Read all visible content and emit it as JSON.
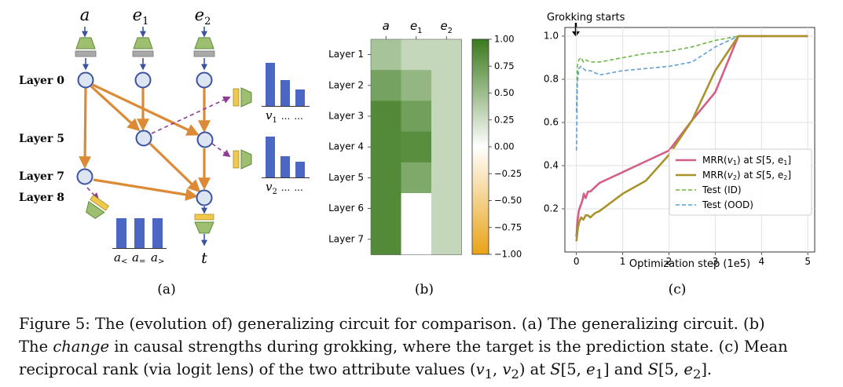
{
  "panel_a": {
    "inputs": [
      "a",
      "e",
      "e"
    ],
    "input_subs": [
      "",
      "1",
      "2"
    ],
    "layers": [
      "Layer 0",
      "Layer 5",
      "Layer 7",
      "Layer 8"
    ],
    "v1_label": "v",
    "v1_sub": "1",
    "v2_label": "v",
    "v2_sub": "2",
    "dots": "...",
    "a_labels": [
      "a",
      "a",
      "a"
    ],
    "a_subs": [
      "<",
      "=",
      ">"
    ],
    "output": "t",
    "tag": "(a)",
    "colors": {
      "node_fill": "#dde4f2",
      "node_stroke": "#3b53a0",
      "edge": "#dc8a35",
      "dashed": "#8e3b96",
      "bar": "#4a67c4",
      "encoder": "#9dbf6f",
      "gray": "#a9a9a9",
      "yellow": "#f0c84b"
    }
  },
  "panel_b": {
    "tag": "(b)",
    "chart_data": {
      "type": "heatmap",
      "columns": [
        "a",
        "e1",
        "e2"
      ],
      "column_labels": [
        "a",
        "e",
        "e"
      ],
      "column_subs": [
        "",
        "1",
        "2"
      ],
      "rows": [
        "Layer 1",
        "Layer 2",
        "Layer 3",
        "Layer 4",
        "Layer 5",
        "Layer 6",
        "Layer 7"
      ],
      "values": [
        [
          0.45,
          0.3,
          0.3
        ],
        [
          0.7,
          0.55,
          0.3
        ],
        [
          0.88,
          0.72,
          0.3
        ],
        [
          0.88,
          0.85,
          0.3
        ],
        [
          0.88,
          0.65,
          0.3
        ],
        [
          0.88,
          0.0,
          0.3
        ],
        [
          0.88,
          0.0,
          0.3
        ]
      ],
      "colorbar_ticks": [
        "1.00",
        "0.75",
        "0.50",
        "0.25",
        "0.00",
        "−0.25",
        "−0.50",
        "−0.75",
        "−1.00"
      ],
      "vmin": -1.0,
      "vmax": 1.0,
      "colormap": {
        "negative": "#e8a316",
        "zero": "#ffffff",
        "positive": "#3a7a1c"
      }
    }
  },
  "panel_c": {
    "tag": "(c)",
    "annotation": "Grokking starts",
    "chart_data": {
      "type": "line",
      "xlabel": "Optimization step (1e5)",
      "ylabel": "",
      "xlim": [
        -0.25,
        5.15
      ],
      "ylim": [
        0.0,
        1.04
      ],
      "xticks": [
        "0",
        "1",
        "2",
        "3",
        "4",
        "5"
      ],
      "yticks": [
        "0.2",
        "0.4",
        "0.6",
        "0.8",
        "1.0"
      ],
      "grid": true,
      "legend_position": "lower-right",
      "series": [
        {
          "name": "MRR(v1) at S[5, e1]",
          "legend_pre": "MRR(",
          "legend_var": "v",
          "legend_sub": "1",
          "legend_post": ") at ",
          "legend_S": "S",
          "legend_bracket": "[5, e",
          "legend_bsub": "1",
          "legend_end": "]",
          "color": "#d45f84",
          "style": "solid",
          "x": [
            0.0,
            0.02,
            0.05,
            0.08,
            0.1,
            0.13,
            0.16,
            0.2,
            0.25,
            0.3,
            0.35,
            0.4,
            0.5,
            1.0,
            1.5,
            2.0,
            2.5,
            3.0,
            3.5,
            5.0
          ],
          "y": [
            0.07,
            0.14,
            0.19,
            0.21,
            0.22,
            0.24,
            0.27,
            0.25,
            0.28,
            0.28,
            0.29,
            0.3,
            0.32,
            0.37,
            0.42,
            0.47,
            0.61,
            0.74,
            1.0,
            1.0
          ]
        },
        {
          "name": "MRR(v2) at S[5, e2]",
          "legend_pre": "MRR(",
          "legend_var": "v",
          "legend_sub": "2",
          "legend_post": ") at ",
          "legend_S": "S",
          "legend_bracket": "[5, e",
          "legend_bsub": "2",
          "legend_end": "]",
          "color": "#a8942b",
          "style": "solid",
          "x": [
            0.0,
            0.03,
            0.06,
            0.1,
            0.15,
            0.2,
            0.25,
            0.3,
            0.35,
            0.4,
            0.5,
            1.0,
            1.5,
            2.0,
            2.5,
            3.0,
            3.5,
            5.0
          ],
          "y": [
            0.05,
            0.11,
            0.14,
            0.16,
            0.15,
            0.17,
            0.17,
            0.16,
            0.17,
            0.18,
            0.19,
            0.27,
            0.33,
            0.45,
            0.61,
            0.84,
            1.0,
            1.0
          ]
        },
        {
          "name": "Test (ID)",
          "legend_pre": "Test (ID)",
          "color": "#6fb547",
          "style": "dashed",
          "x": [
            0.0,
            0.02,
            0.05,
            0.1,
            0.15,
            0.2,
            0.3,
            0.5,
            1.0,
            1.5,
            2.0,
            2.5,
            3.0,
            3.5,
            4.0,
            5.0
          ],
          "y": [
            0.65,
            0.86,
            0.89,
            0.9,
            0.88,
            0.89,
            0.88,
            0.88,
            0.9,
            0.92,
            0.93,
            0.95,
            0.98,
            1.0,
            1.0,
            1.0
          ]
        },
        {
          "name": "Test (OOD)",
          "legend_pre": "Test (OOD)",
          "color": "#5e9fdc",
          "style": "dashed",
          "x": [
            0.0,
            0.02,
            0.05,
            0.1,
            0.15,
            0.2,
            0.3,
            0.5,
            1.0,
            1.5,
            2.0,
            2.5,
            3.0,
            3.5,
            4.0,
            5.0
          ],
          "y": [
            0.47,
            0.78,
            0.85,
            0.86,
            0.85,
            0.84,
            0.84,
            0.82,
            0.84,
            0.85,
            0.86,
            0.88,
            0.95,
            1.0,
            1.0,
            1.0
          ]
        }
      ]
    }
  },
  "caption": {
    "line1": "Figure 5: The (evolution of) generalizing circuit for comparison. (a) The generalizing circuit. (b)",
    "line2_pre": "The ",
    "line2_em": "change",
    "line2_post": " in causal strengths during grokking, where the target is the prediction state. (c) Mean",
    "line3_pre": "reciprocal rank (via logit lens) of the two attribute values (",
    "v": "v",
    "sub1": "1",
    "comma": ", ",
    "sub2": "2",
    "line3_mid": ") at ",
    "S": "S",
    "bracket_open": "[5, ",
    "e": "e",
    "bracket_close": "]",
    "and": " and ",
    "period": "."
  }
}
